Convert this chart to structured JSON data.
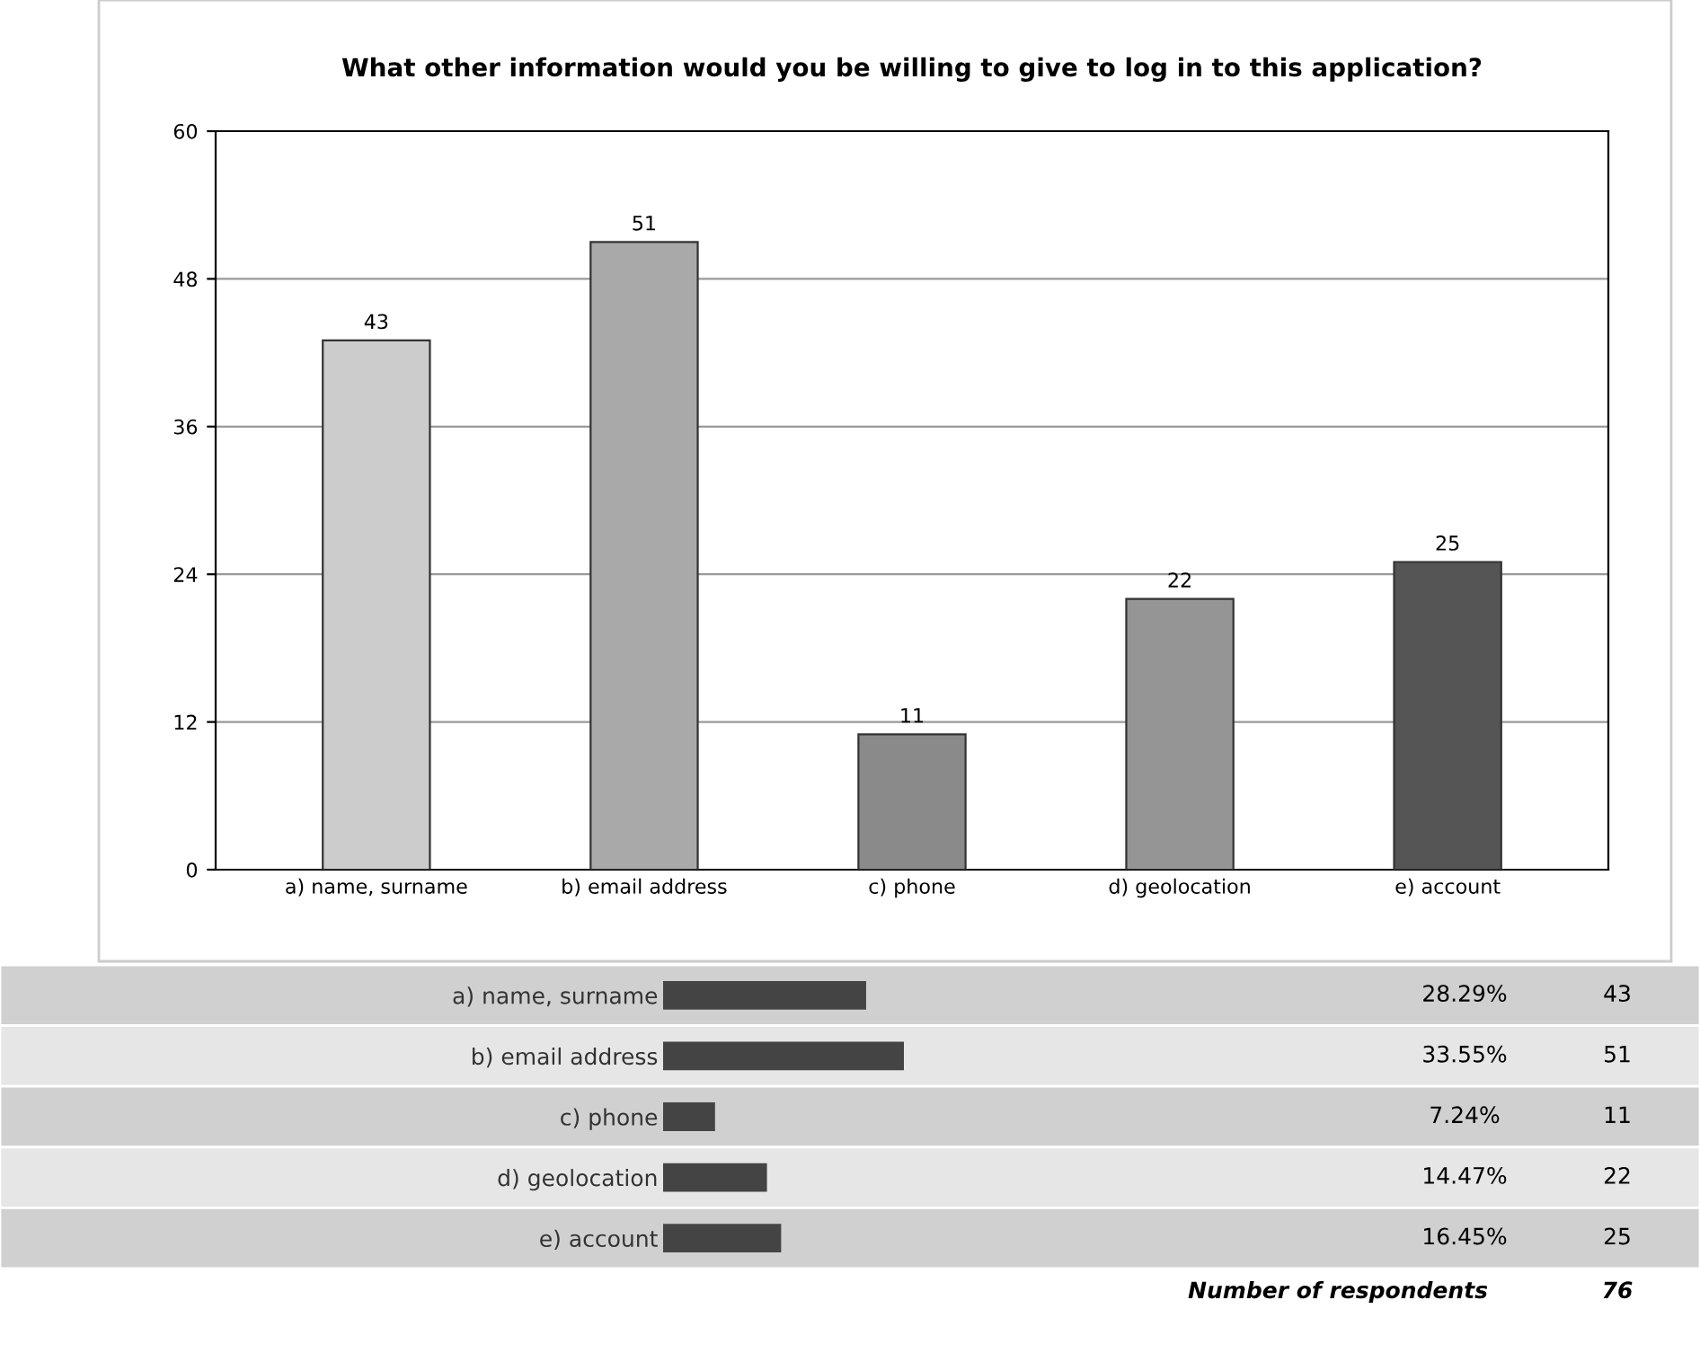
{
  "chart_data": [
    {
      "type": "bar",
      "title": "What other information would you be willing to give to log in to this application?",
      "categories": [
        "a) name, surname",
        "b) email address",
        "c) phone",
        "d) geolocation",
        "e) account"
      ],
      "values": [
        43,
        51,
        11,
        22,
        25
      ],
      "colors": [
        "#cccccc",
        "#a9a9a9",
        "#8a8a8a",
        "#959595",
        "#555555"
      ],
      "ylim": [
        0,
        60
      ],
      "yticks": [
        0,
        12,
        24,
        36,
        48,
        60
      ],
      "grid": "y",
      "data_labels": true
    },
    {
      "type": "bar",
      "orientation": "horizontal",
      "categories": [
        "a) name, surname",
        "b) email address",
        "c) phone",
        "d) geolocation",
        "e) account"
      ],
      "values": [
        43,
        51,
        11,
        22,
        25
      ],
      "color": "#444444",
      "xlim": [
        0,
        51
      ],
      "tick_labels": "y",
      "data_labels": true,
      "annotations": [
        "28.29%",
        "33.55%",
        "7.24%",
        "14.47%",
        "16.45%",
        "Number of respondents",
        "76"
      ]
    }
  ]
}
